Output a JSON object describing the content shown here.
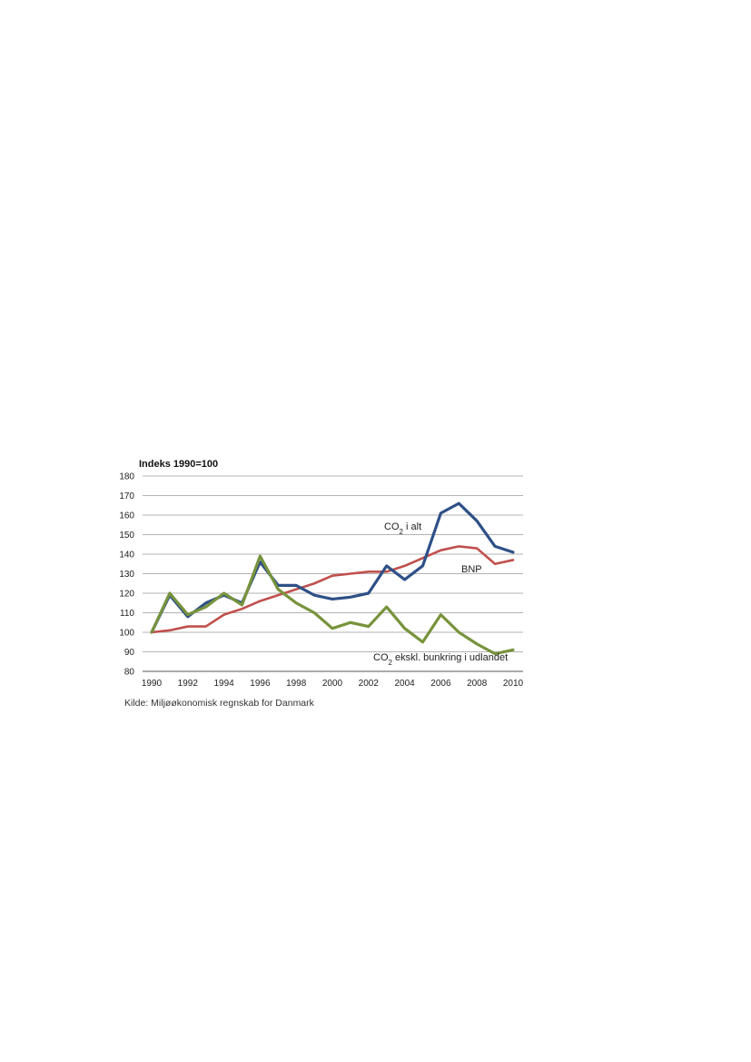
{
  "chart_data": {
    "type": "line",
    "ylabel": "Indeks 1990=100",
    "ylim": [
      80,
      180
    ],
    "yticks": [
      80,
      90,
      100,
      110,
      120,
      130,
      140,
      150,
      160,
      170,
      180
    ],
    "xlim": [
      1990,
      2010
    ],
    "xticks": [
      1990,
      1992,
      1994,
      1996,
      1998,
      2000,
      2002,
      2004,
      2006,
      2008,
      2010
    ],
    "grid": true,
    "x": [
      1990,
      1991,
      1992,
      1993,
      1994,
      1995,
      1996,
      1997,
      1998,
      1999,
      2000,
      2001,
      2002,
      2003,
      2004,
      2005,
      2006,
      2007,
      2008,
      2009,
      2010
    ],
    "series": [
      {
        "name_prefix": "CO",
        "name_sub": "2",
        "name_suffix": " i alt",
        "color": "#2e5088",
        "values": [
          100,
          119,
          108,
          115,
          119,
          115,
          136,
          124,
          124,
          119,
          117,
          118,
          120,
          134,
          127,
          134,
          161,
          166,
          157,
          144,
          141
        ]
      },
      {
        "name": "BNP",
        "color": "#c0504d",
        "values": [
          100,
          101,
          103,
          103,
          109,
          112,
          116,
          119,
          122,
          125,
          129,
          130,
          131,
          131,
          134,
          138,
          142,
          144,
          143,
          135,
          137
        ]
      },
      {
        "name_prefix": "CO",
        "name_sub": "2",
        "name_suffix": " ekskl. bunkring i udlandet",
        "color": "#77933c",
        "values": [
          100,
          120,
          109,
          113,
          120,
          114,
          139,
          122,
          115,
          110,
          102,
          105,
          103,
          113,
          102,
          95,
          109,
          100,
          94,
          89,
          91
        ]
      }
    ]
  },
  "source_text": "Kilde: Miljøøkonomisk regnskab for Danmark"
}
